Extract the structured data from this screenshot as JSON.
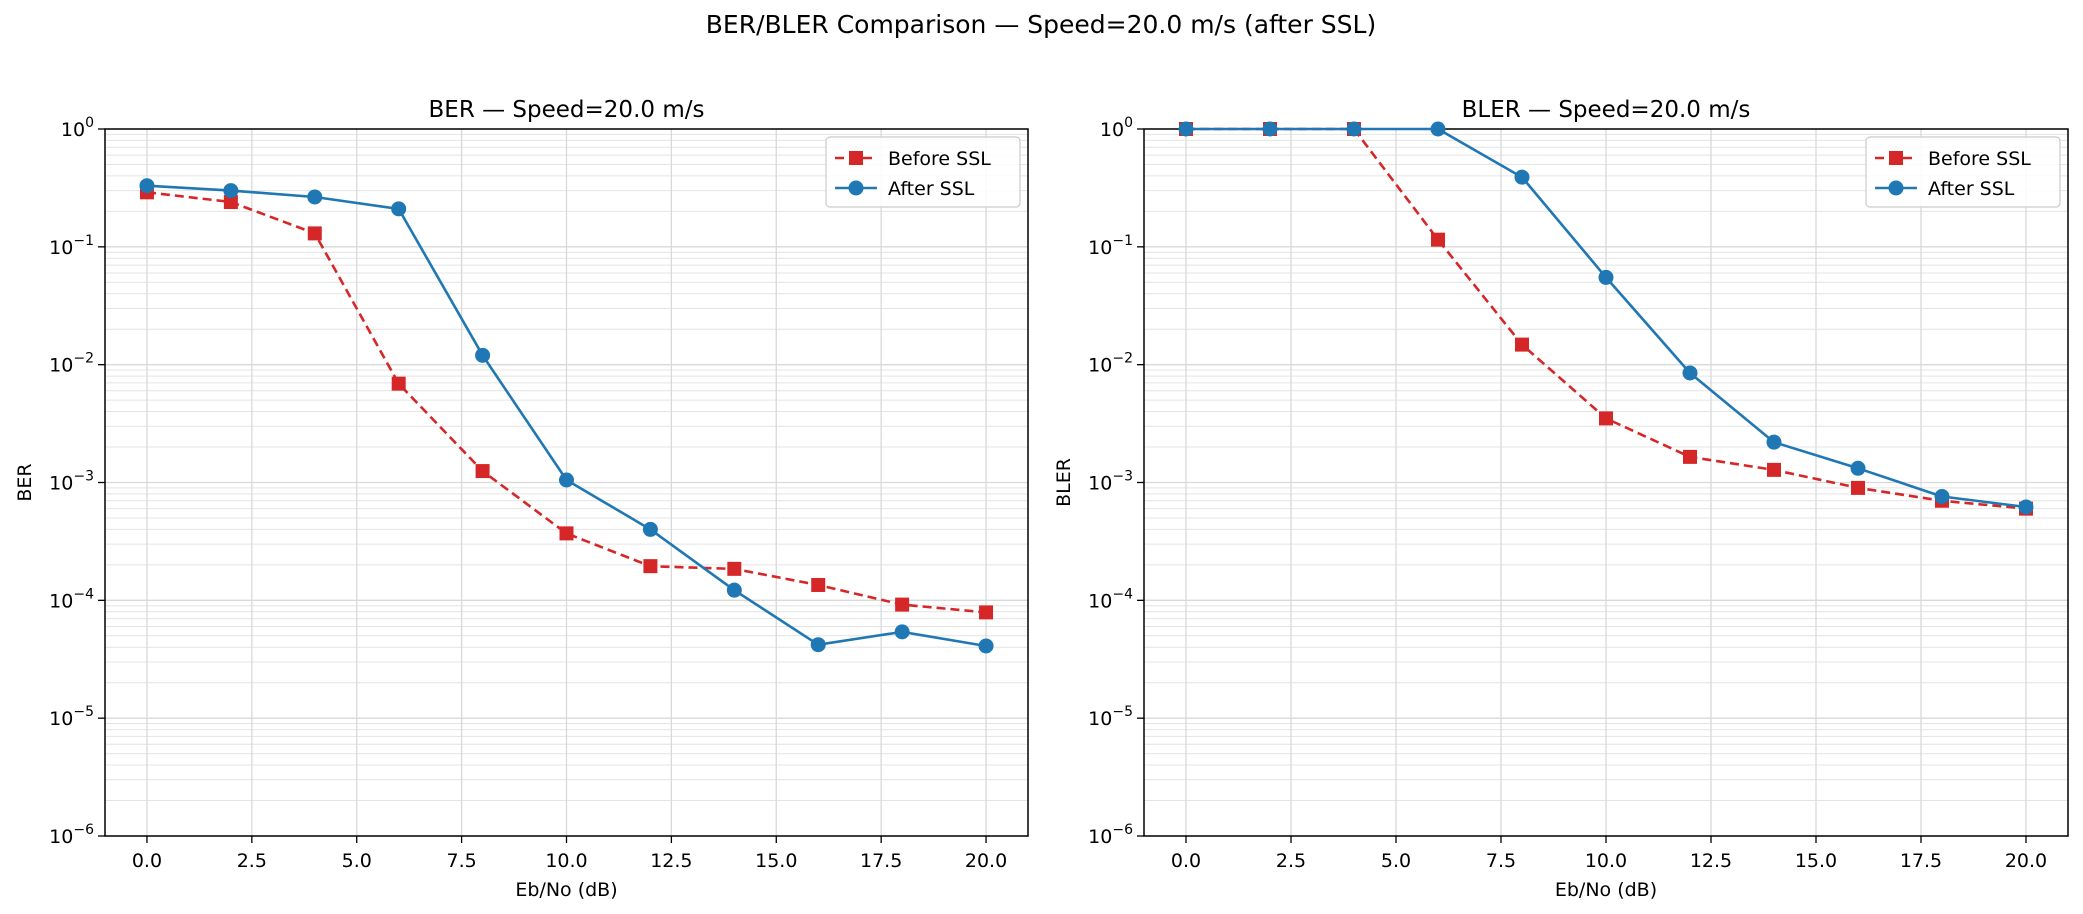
{
  "suptitle": "BER/BLER Comparison — Speed=20.0 m/s (after SSL)",
  "colors": {
    "before": "#d62728",
    "after": "#1f77b4",
    "grid": "#d9d9d9",
    "axis": "#000000"
  },
  "chart_data": [
    {
      "type": "line",
      "yscale": "log",
      "title": "BER — Speed=20.0 m/s",
      "xlabel": "Eb/No (dB)",
      "ylabel": "BER",
      "xlim": [
        -1.0,
        21.0
      ],
      "ylim": [
        1e-06,
        1
      ],
      "xticks": [
        0,
        2.5,
        5,
        7.5,
        10,
        12.5,
        15,
        17.5,
        20
      ],
      "xtick_labels": [
        "0.0",
        "2.5",
        "5.0",
        "7.5",
        "10.0",
        "12.5",
        "15.0",
        "17.5",
        "20.0"
      ],
      "yticks": [
        1e-06,
        1e-05,
        0.0001,
        0.001,
        0.01,
        0.1,
        1
      ],
      "ytick_labels": [
        {
          "base": "10",
          "exp": "−6"
        },
        {
          "base": "10",
          "exp": "−5"
        },
        {
          "base": "10",
          "exp": "−4"
        },
        {
          "base": "10",
          "exp": "−3"
        },
        {
          "base": "10",
          "exp": "−2"
        },
        {
          "base": "10",
          "exp": "−1"
        },
        {
          "base": "10",
          "exp": "0"
        }
      ],
      "grid": true,
      "legend": "top-right",
      "x": [
        0,
        2,
        4,
        6,
        8,
        10,
        12,
        14,
        16,
        18,
        20
      ],
      "series": [
        {
          "name": "Before SSL",
          "key": "before",
          "marker": "square",
          "dashed": true,
          "values": [
            0.29,
            0.24,
            0.13,
            0.0069,
            0.00125,
            0.00037,
            0.000195,
            0.000185,
            0.000135,
            9.2e-05,
            7.9e-05
          ]
        },
        {
          "name": "After SSL",
          "key": "after",
          "marker": "circle",
          "dashed": false,
          "values": [
            0.33,
            0.3,
            0.265,
            0.21,
            0.012,
            0.00105,
            0.0004,
            0.000122,
            4.2e-05,
            5.4e-05,
            4.1e-05
          ]
        }
      ]
    },
    {
      "type": "line",
      "yscale": "log",
      "title": "BLER — Speed=20.0 m/s",
      "xlabel": "Eb/No (dB)",
      "ylabel": "BLER",
      "xlim": [
        -1.0,
        21.0
      ],
      "ylim": [
        1e-06,
        1
      ],
      "xticks": [
        0,
        2.5,
        5,
        7.5,
        10,
        12.5,
        15,
        17.5,
        20
      ],
      "xtick_labels": [
        "0.0",
        "2.5",
        "5.0",
        "7.5",
        "10.0",
        "12.5",
        "15.0",
        "17.5",
        "20.0"
      ],
      "yticks": [
        1e-06,
        1e-05,
        0.0001,
        0.001,
        0.01,
        0.1,
        1
      ],
      "ytick_labels": [
        {
          "base": "10",
          "exp": "−6"
        },
        {
          "base": "10",
          "exp": "−5"
        },
        {
          "base": "10",
          "exp": "−4"
        },
        {
          "base": "10",
          "exp": "−3"
        },
        {
          "base": "10",
          "exp": "−2"
        },
        {
          "base": "10",
          "exp": "−1"
        },
        {
          "base": "10",
          "exp": "0"
        }
      ],
      "grid": true,
      "legend": "top-right",
      "x": [
        0,
        2,
        4,
        6,
        8,
        10,
        12,
        14,
        16,
        18,
        20
      ],
      "series": [
        {
          "name": "Before SSL",
          "key": "before",
          "marker": "square",
          "dashed": true,
          "values": [
            1.0,
            1.0,
            1.0,
            0.115,
            0.0148,
            0.0035,
            0.00165,
            0.00128,
            0.0009,
            0.0007,
            0.0006
          ]
        },
        {
          "name": "After SSL",
          "key": "after",
          "marker": "circle",
          "dashed": false,
          "values": [
            1.0,
            1.0,
            1.0,
            1.0,
            0.39,
            0.055,
            0.0085,
            0.0022,
            0.00132,
            0.00076,
            0.00062
          ]
        }
      ]
    }
  ]
}
